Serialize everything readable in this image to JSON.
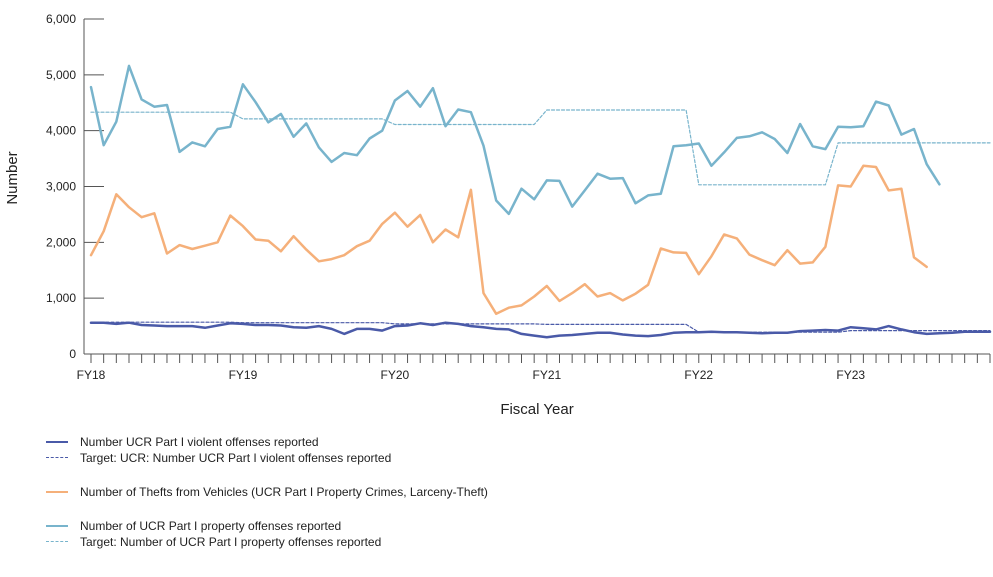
{
  "chart_data": {
    "type": "line",
    "title": "",
    "xlabel": "Fiscal Year",
    "ylabel": "Number",
    "ylim": [
      0,
      6000
    ],
    "yticks": [
      0,
      1000,
      2000,
      3000,
      4000,
      5000,
      6000
    ],
    "ytick_labels": [
      "0",
      "1,000",
      "2,000",
      "3,000",
      "4,000",
      "5,000",
      "6,000"
    ],
    "x_range_months": [
      0,
      71
    ],
    "xtick_labels": [
      {
        "label": "FY18",
        "month": 0
      },
      {
        "label": "FY19",
        "month": 12
      },
      {
        "label": "FY20",
        "month": 24
      },
      {
        "label": "FY21",
        "month": 36
      },
      {
        "label": "FY22",
        "month": 48
      },
      {
        "label": "FY23",
        "month": 60
      }
    ],
    "grid": false,
    "legend_position": "bottom",
    "series": [
      {
        "name": "Number UCR Part I violent offenses reported",
        "color": "#4a5aa8",
        "dashed": false,
        "width": 2.5,
        "values": [
          560,
          560,
          540,
          560,
          520,
          510,
          500,
          500,
          500,
          470,
          510,
          550,
          540,
          520,
          520,
          510,
          480,
          470,
          500,
          450,
          360,
          450,
          450,
          420,
          500,
          510,
          550,
          520,
          560,
          540,
          500,
          480,
          450,
          440,
          360,
          330,
          300,
          330,
          340,
          360,
          380,
          380,
          350,
          330,
          320,
          340,
          380,
          390,
          390,
          400,
          390,
          390,
          380,
          370,
          380,
          380,
          410,
          420,
          430,
          420,
          480,
          460,
          440,
          500,
          440,
          390,
          360,
          370,
          380,
          400,
          400,
          400
        ]
      },
      {
        "name": "Target: UCR: Number UCR Part I violent offenses reported",
        "color": "#4a5aa8",
        "dashed": true,
        "width": 1.2,
        "values": [
          570,
          570,
          570,
          570,
          570,
          570,
          570,
          570,
          570,
          570,
          570,
          570,
          560,
          560,
          560,
          560,
          560,
          560,
          560,
          560,
          560,
          560,
          560,
          560,
          540,
          540,
          540,
          540,
          540,
          540,
          540,
          540,
          540,
          540,
          540,
          540,
          530,
          530,
          530,
          530,
          530,
          530,
          530,
          530,
          530,
          530,
          530,
          530,
          390,
          390,
          390,
          390,
          390,
          390,
          390,
          390,
          390,
          390,
          390,
          390,
          420,
          420,
          420,
          420,
          420,
          420,
          420,
          420,
          420,
          420,
          420,
          420
        ]
      },
      {
        "name": "Number of Thefts from Vehicles (UCR Part I Property Crimes, Larceny-Theft)",
        "color": "#f5b07a",
        "dashed": false,
        "width": 2.5,
        "values": [
          1770,
          2200,
          2860,
          2630,
          2450,
          2520,
          1800,
          1950,
          1880,
          1940,
          2000,
          2480,
          2290,
          2050,
          2030,
          1840,
          2110,
          1870,
          1660,
          1700,
          1770,
          1930,
          2030,
          2330,
          2530,
          2280,
          2490,
          2000,
          2230,
          2090,
          2940,
          1090,
          720,
          830,
          870,
          1030,
          1220,
          950,
          1090,
          1250,
          1030,
          1090,
          960,
          1080,
          1240,
          1890,
          1820,
          1810,
          1430,
          1750,
          2140,
          2070,
          1780,
          1680,
          1590,
          1860,
          1620,
          1640,
          1920,
          3020,
          3000,
          3370,
          3350,
          2930,
          2960,
          1730,
          1560
        ]
      },
      {
        "name": "Number of UCR Part I property offenses reported",
        "color": "#78b4cc",
        "dashed": false,
        "width": 2.5,
        "values": [
          4780,
          3740,
          4160,
          5160,
          4560,
          4430,
          4460,
          3620,
          3790,
          3720,
          4030,
          4070,
          4830,
          4510,
          4150,
          4300,
          3890,
          4130,
          3700,
          3440,
          3600,
          3560,
          3860,
          4000,
          4540,
          4710,
          4430,
          4760,
          4080,
          4380,
          4330,
          3730,
          2750,
          2510,
          2960,
          2770,
          3110,
          3100,
          2640,
          2930,
          3230,
          3140,
          3150,
          2700,
          2840,
          2870,
          3720,
          3740,
          3770,
          3370,
          3610,
          3870,
          3900,
          3970,
          3850,
          3600,
          4120,
          3720,
          3670,
          4070,
          4060,
          4080,
          4520,
          4450,
          3930,
          4030,
          3400,
          3040
        ]
      },
      {
        "name": "Target: Number of UCR Part I property offenses reported",
        "color": "#78b4cc",
        "dashed": true,
        "width": 1.2,
        "values": [
          4330,
          4330,
          4330,
          4330,
          4330,
          4330,
          4330,
          4330,
          4330,
          4330,
          4330,
          4330,
          4210,
          4210,
          4210,
          4210,
          4210,
          4210,
          4210,
          4210,
          4210,
          4210,
          4210,
          4210,
          4110,
          4110,
          4110,
          4110,
          4110,
          4110,
          4110,
          4110,
          4110,
          4110,
          4110,
          4110,
          4370,
          4370,
          4370,
          4370,
          4370,
          4370,
          4370,
          4370,
          4370,
          4370,
          4370,
          4370,
          3030,
          3030,
          3030,
          3030,
          3030,
          3030,
          3030,
          3030,
          3030,
          3030,
          3030,
          3780,
          3780,
          3780,
          3780,
          3780,
          3780,
          3780,
          3780,
          3780,
          3780,
          3780,
          3780,
          3780
        ]
      }
    ]
  }
}
